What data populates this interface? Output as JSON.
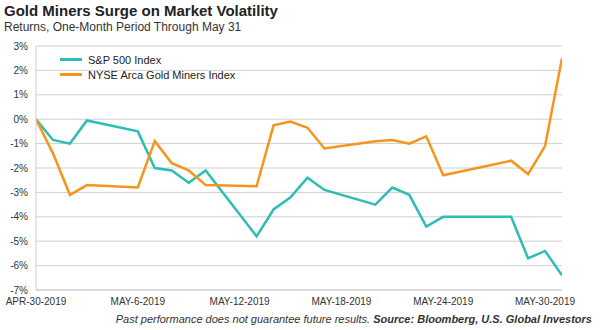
{
  "chart_data": {
    "type": "line",
    "title": "Gold Miners Surge on Market Volatility",
    "subtitle": "Returns, One-Month Period Through May 31",
    "footnote": "Past performance does not guarantee future results.",
    "source": "Source: Bloomberg, U.S. Global Investors",
    "x": [
      0,
      1,
      2,
      3,
      6,
      7,
      8,
      9,
      10,
      13,
      14,
      15,
      16,
      17,
      20,
      21,
      22,
      23,
      24,
      28,
      29,
      30,
      31
    ],
    "xlim": [
      0,
      31
    ],
    "xticks": [
      {
        "value": 0,
        "label": "APR-30-2019"
      },
      {
        "value": 6,
        "label": "MAY-6-2019"
      },
      {
        "value": 12,
        "label": "MAY-12-2019"
      },
      {
        "value": 18,
        "label": "MAY-18-2019"
      },
      {
        "value": 24,
        "label": "MAY-24-2019"
      },
      {
        "value": 30,
        "label": "MAY-30-2019"
      }
    ],
    "ylim": [
      -7,
      3
    ],
    "yticks": [
      {
        "value": -7,
        "label": "-7%"
      },
      {
        "value": -6,
        "label": "-6%"
      },
      {
        "value": -5,
        "label": "-5%"
      },
      {
        "value": -4,
        "label": "-4%"
      },
      {
        "value": -3,
        "label": "-3%"
      },
      {
        "value": -2,
        "label": "-2%"
      },
      {
        "value": -1,
        "label": "-1%"
      },
      {
        "value": 0,
        "label": "0%"
      },
      {
        "value": 1,
        "label": "1%"
      },
      {
        "value": 2,
        "label": "2%"
      },
      {
        "value": 3,
        "label": "3%"
      }
    ],
    "grid": true,
    "legend": "upper left",
    "series": [
      {
        "name": "S&P 500 Index",
        "color": "#2ebdb4",
        "values": [
          0,
          -0.85,
          -1.0,
          -0.05,
          -0.5,
          -2.0,
          -2.1,
          -2.6,
          -2.1,
          -4.8,
          -3.7,
          -3.2,
          -2.4,
          -2.9,
          -3.5,
          -2.8,
          -3.1,
          -4.4,
          -4.0,
          -4.0,
          -5.7,
          -5.4,
          -6.4
        ]
      },
      {
        "name": "NYSE Arca Gold Miners Index",
        "color": "#f7941d",
        "values": [
          0,
          -1.4,
          -3.1,
          -2.7,
          -2.8,
          -0.9,
          -1.8,
          -2.1,
          -2.7,
          -2.75,
          -0.25,
          -0.1,
          -0.35,
          -1.2,
          -0.9,
          -0.85,
          -1.0,
          -0.7,
          -2.3,
          -1.7,
          -2.25,
          -1.1,
          2.5
        ]
      }
    ]
  }
}
